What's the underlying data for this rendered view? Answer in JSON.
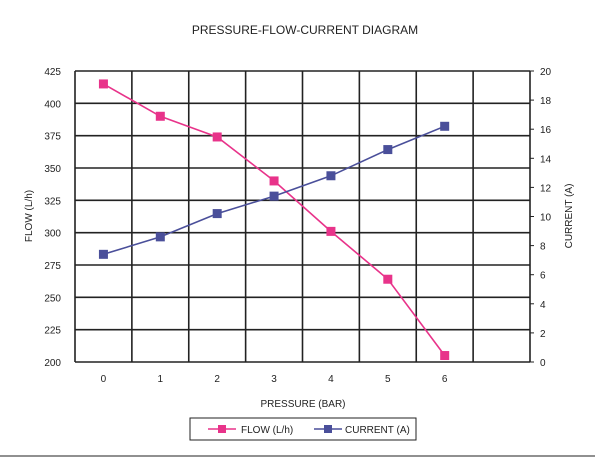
{
  "chart_data": {
    "type": "line",
    "title": "PRESSURE-FLOW-CURRENT DIAGRAM",
    "xlabel": "PRESSURE (BAR)",
    "x": [
      0,
      1,
      2,
      3,
      4,
      5,
      6
    ],
    "x_ticks": [
      "0",
      "1",
      "2",
      "3",
      "4",
      "5",
      "6"
    ],
    "xlim": [
      -0.5,
      7.5
    ],
    "y_left": {
      "label": "FLOW (L/h)",
      "ylim": [
        200,
        425
      ],
      "ticks": [
        "200",
        "225",
        "250",
        "275",
        "300",
        "325",
        "350",
        "375",
        "400",
        "425"
      ]
    },
    "y_right": {
      "label": "CURRENT (A)",
      "ylim": [
        0,
        20
      ],
      "ticks": [
        "0",
        "2",
        "4",
        "6",
        "8",
        "10",
        "12",
        "14",
        "16",
        "18",
        "20"
      ]
    },
    "series": [
      {
        "name": "FLOW (L/h)",
        "axis": "left",
        "color": "#e8338a",
        "x": [
          0,
          1,
          2,
          3,
          4,
          5,
          6
        ],
        "values": [
          415,
          390,
          374,
          340,
          301,
          264,
          205
        ]
      },
      {
        "name": "CURRENT (A)",
        "axis": "right",
        "color": "#4a4f9a",
        "x": [
          0,
          1,
          2,
          3,
          4,
          5,
          6
        ],
        "values": [
          7.4,
          8.6,
          10.2,
          11.4,
          12.8,
          14.6,
          16.2
        ]
      }
    ],
    "grid": true,
    "legend": "bottom"
  }
}
